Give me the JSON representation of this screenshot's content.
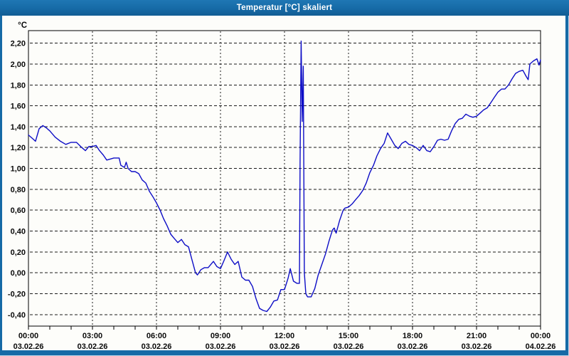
{
  "window": {
    "title": "Temperatur [°C] skaliert"
  },
  "colors": {
    "titlebar": "#166aa6",
    "window_border": "#166aa6",
    "chart_background": "#fdfdfa",
    "plot_background": "#ffffff",
    "grid": "#1a1a1a",
    "axis": "#000000",
    "series_line": "#0d0dc6",
    "label_text": "#0a0a0a",
    "title_text": "#ffffff"
  },
  "chart_data": {
    "type": "line",
    "title": "Temperatur [°C] skaliert",
    "y_unit_label": "°C",
    "xlabel": "",
    "ylabel": "°C",
    "grid": "dashed",
    "legend": "none",
    "xlim_hours": [
      0,
      24
    ],
    "ylim": [
      -0.51,
      2.32
    ],
    "x_major_ticks": [
      {
        "hour": 0,
        "time": "00:00",
        "date": "03.02.26"
      },
      {
        "hour": 3,
        "time": "03:00",
        "date": "03.02.26"
      },
      {
        "hour": 6,
        "time": "06:00",
        "date": "03.02.26"
      },
      {
        "hour": 9,
        "time": "09:00",
        "date": "03.02.26"
      },
      {
        "hour": 12,
        "time": "12:00",
        "date": "03.02.26"
      },
      {
        "hour": 15,
        "time": "15:00",
        "date": "03.02.26"
      },
      {
        "hour": 18,
        "time": "18:00",
        "date": "03.02.26"
      },
      {
        "hour": 21,
        "time": "21:00",
        "date": "03.02.26"
      },
      {
        "hour": 24,
        "time": "00:00",
        "date": "04.02.26"
      }
    ],
    "x_minor_tick_every_hours": 1,
    "y_ticks": [
      {
        "value": 2.2,
        "label": "2,20"
      },
      {
        "value": 2.0,
        "label": "2,00"
      },
      {
        "value": 1.8,
        "label": "1,80"
      },
      {
        "value": 1.6,
        "label": "1,60"
      },
      {
        "value": 1.4,
        "label": "1,40"
      },
      {
        "value": 1.2,
        "label": "1,20"
      },
      {
        "value": 1.0,
        "label": "1,00"
      },
      {
        "value": 0.8,
        "label": "0,80"
      },
      {
        "value": 0.6,
        "label": "0,60"
      },
      {
        "value": 0.4,
        "label": "0,40"
      },
      {
        "value": 0.2,
        "label": "0,20"
      },
      {
        "value": 0.0,
        "label": "0,00"
      },
      {
        "value": -0.2,
        "label": "-0,20"
      },
      {
        "value": -0.4,
        "label": "-0,40"
      }
    ],
    "series": [
      {
        "name": "Temperatur",
        "color": "#0d0dc6",
        "points": [
          [
            0.0,
            1.32
          ],
          [
            0.17,
            1.29
          ],
          [
            0.33,
            1.26
          ],
          [
            0.5,
            1.38
          ],
          [
            0.67,
            1.41
          ],
          [
            0.83,
            1.39
          ],
          [
            1.0,
            1.36
          ],
          [
            1.25,
            1.3
          ],
          [
            1.5,
            1.26
          ],
          [
            1.75,
            1.23
          ],
          [
            2.0,
            1.25
          ],
          [
            2.25,
            1.25
          ],
          [
            2.5,
            1.2
          ],
          [
            2.67,
            1.17
          ],
          [
            2.83,
            1.21
          ],
          [
            3.0,
            1.21
          ],
          [
            3.17,
            1.22
          ],
          [
            3.33,
            1.17
          ],
          [
            3.5,
            1.13
          ],
          [
            3.67,
            1.08
          ],
          [
            3.83,
            1.09
          ],
          [
            4.0,
            1.1
          ],
          [
            4.25,
            1.1
          ],
          [
            4.33,
            1.03
          ],
          [
            4.5,
            1.01
          ],
          [
            4.58,
            1.06
          ],
          [
            4.67,
            1.0
          ],
          [
            4.83,
            0.97
          ],
          [
            5.0,
            0.97
          ],
          [
            5.17,
            0.95
          ],
          [
            5.33,
            0.89
          ],
          [
            5.5,
            0.86
          ],
          [
            5.67,
            0.78
          ],
          [
            5.83,
            0.73
          ],
          [
            6.0,
            0.67
          ],
          [
            6.17,
            0.6
          ],
          [
            6.33,
            0.52
          ],
          [
            6.5,
            0.45
          ],
          [
            6.67,
            0.37
          ],
          [
            6.83,
            0.33
          ],
          [
            7.0,
            0.29
          ],
          [
            7.17,
            0.32
          ],
          [
            7.33,
            0.27
          ],
          [
            7.5,
            0.25
          ],
          [
            7.67,
            0.12
          ],
          [
            7.83,
            0.0
          ],
          [
            7.92,
            -0.02
          ],
          [
            8.08,
            0.03
          ],
          [
            8.25,
            0.05
          ],
          [
            8.42,
            0.05
          ],
          [
            8.67,
            0.11
          ],
          [
            8.83,
            0.06
          ],
          [
            9.0,
            0.04
          ],
          [
            9.17,
            0.12
          ],
          [
            9.33,
            0.2
          ],
          [
            9.5,
            0.13
          ],
          [
            9.67,
            0.08
          ],
          [
            9.83,
            0.11
          ],
          [
            10.0,
            -0.04
          ],
          [
            10.17,
            -0.07
          ],
          [
            10.33,
            -0.07
          ],
          [
            10.5,
            -0.13
          ],
          [
            10.67,
            -0.25
          ],
          [
            10.83,
            -0.34
          ],
          [
            11.0,
            -0.36
          ],
          [
            11.17,
            -0.37
          ],
          [
            11.33,
            -0.33
          ],
          [
            11.5,
            -0.27
          ],
          [
            11.67,
            -0.26
          ],
          [
            11.83,
            -0.16
          ],
          [
            12.0,
            -0.16
          ],
          [
            12.17,
            -0.05
          ],
          [
            12.27,
            0.04
          ],
          [
            12.42,
            -0.08
          ],
          [
            12.58,
            -0.1
          ],
          [
            12.7,
            -0.1
          ],
          [
            12.73,
            1.06
          ],
          [
            12.78,
            2.22
          ],
          [
            12.83,
            1.45
          ],
          [
            12.88,
            1.98
          ],
          [
            12.93,
            0.0
          ],
          [
            13.0,
            -0.2
          ],
          [
            13.08,
            -0.23
          ],
          [
            13.25,
            -0.23
          ],
          [
            13.42,
            -0.15
          ],
          [
            13.58,
            -0.02
          ],
          [
            13.75,
            0.08
          ],
          [
            13.92,
            0.18
          ],
          [
            14.08,
            0.3
          ],
          [
            14.17,
            0.36
          ],
          [
            14.25,
            0.41
          ],
          [
            14.33,
            0.43
          ],
          [
            14.42,
            0.38
          ],
          [
            14.58,
            0.5
          ],
          [
            14.75,
            0.6
          ],
          [
            14.83,
            0.62
          ],
          [
            15.0,
            0.63
          ],
          [
            15.17,
            0.66
          ],
          [
            15.33,
            0.7
          ],
          [
            15.5,
            0.74
          ],
          [
            15.67,
            0.79
          ],
          [
            15.83,
            0.86
          ],
          [
            16.0,
            0.96
          ],
          [
            16.17,
            1.03
          ],
          [
            16.33,
            1.12
          ],
          [
            16.5,
            1.19
          ],
          [
            16.67,
            1.24
          ],
          [
            16.83,
            1.34
          ],
          [
            17.0,
            1.28
          ],
          [
            17.17,
            1.22
          ],
          [
            17.33,
            1.19
          ],
          [
            17.5,
            1.24
          ],
          [
            17.67,
            1.26
          ],
          [
            17.83,
            1.23
          ],
          [
            18.0,
            1.22
          ],
          [
            18.17,
            1.2
          ],
          [
            18.33,
            1.17
          ],
          [
            18.5,
            1.22
          ],
          [
            18.67,
            1.17
          ],
          [
            18.83,
            1.16
          ],
          [
            19.0,
            1.21
          ],
          [
            19.17,
            1.27
          ],
          [
            19.33,
            1.28
          ],
          [
            19.5,
            1.27
          ],
          [
            19.67,
            1.28
          ],
          [
            19.83,
            1.36
          ],
          [
            20.0,
            1.43
          ],
          [
            20.17,
            1.47
          ],
          [
            20.33,
            1.48
          ],
          [
            20.5,
            1.52
          ],
          [
            20.67,
            1.5
          ],
          [
            20.83,
            1.49
          ],
          [
            21.0,
            1.5
          ],
          [
            21.17,
            1.53
          ],
          [
            21.33,
            1.56
          ],
          [
            21.5,
            1.58
          ],
          [
            21.67,
            1.63
          ],
          [
            21.83,
            1.68
          ],
          [
            22.0,
            1.73
          ],
          [
            22.17,
            1.76
          ],
          [
            22.33,
            1.76
          ],
          [
            22.5,
            1.8
          ],
          [
            22.67,
            1.86
          ],
          [
            22.83,
            1.91
          ],
          [
            23.0,
            1.93
          ],
          [
            23.17,
            1.94
          ],
          [
            23.33,
            1.88
          ],
          [
            23.42,
            1.85
          ],
          [
            23.5,
            2.0
          ],
          [
            23.67,
            2.03
          ],
          [
            23.83,
            2.05
          ],
          [
            23.93,
            1.99
          ],
          [
            24.0,
            2.04
          ]
        ]
      }
    ]
  }
}
